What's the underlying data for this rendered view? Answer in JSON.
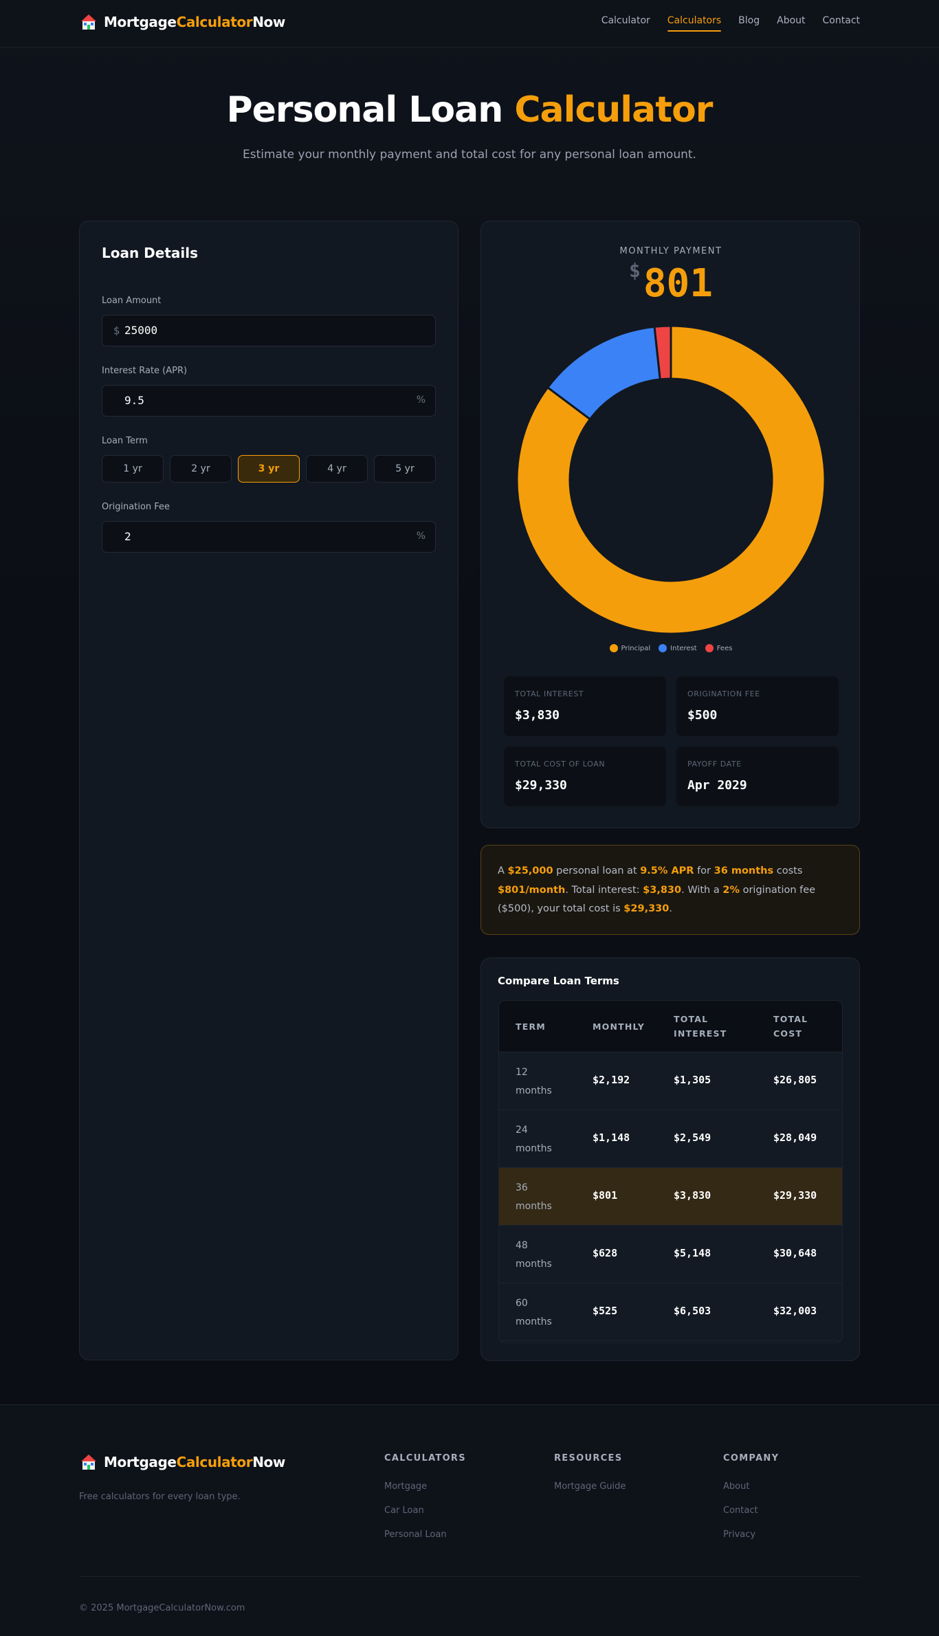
{
  "brand": {
    "part1": "Mortgage",
    "part2": "Calculator",
    "part3": "Now"
  },
  "nav": {
    "links": [
      "Calculator",
      "Calculators",
      "Blog",
      "About",
      "Contact"
    ],
    "active": "Calculators"
  },
  "hero": {
    "title_main": "Personal Loan",
    "title_accent": "Calculator",
    "subtitle": "Estimate your monthly payment and total cost for any personal loan amount."
  },
  "form": {
    "title": "Loan Details",
    "amount_label": "Loan Amount",
    "amount_prefix": "$",
    "amount_value": "25000",
    "rate_label": "Interest Rate (APR)",
    "rate_value": "9.5",
    "rate_suffix": "%",
    "term_label": "Loan Term",
    "terms": [
      "1 yr",
      "2 yr",
      "3 yr",
      "4 yr",
      "5 yr"
    ],
    "term_selected": "3 yr",
    "fee_label": "Origination Fee",
    "fee_value": "2",
    "fee_suffix": "%"
  },
  "result": {
    "label": "MONTHLY PAYMENT",
    "currency": "$",
    "value": "801",
    "legend": [
      "Principal",
      "Interest",
      "Fees"
    ],
    "colors": {
      "principal": "#f59e0b",
      "interest": "#3b82f6",
      "fees": "#ef4444"
    },
    "breakdown": {
      "principal": 25000,
      "interest": 3830,
      "fees": 500
    },
    "stats": [
      {
        "label": "TOTAL INTEREST",
        "value": "$3,830"
      },
      {
        "label": "ORIGINATION FEE",
        "value": "$500"
      },
      {
        "label": "TOTAL COST OF LOAN",
        "value": "$29,330"
      },
      {
        "label": "PAYOFF DATE",
        "value": "Apr 2029"
      }
    ]
  },
  "summary": {
    "t1": "A ",
    "b1": "$25,000",
    "t2": " personal loan at ",
    "b2": "9.5% APR",
    "t3": " for ",
    "b3": "36 months",
    "t4": " costs ",
    "b4": "$801/month",
    "t5": ". Total interest: ",
    "b5": "$3,830",
    "t6": ". With a ",
    "b6": "2%",
    "t7": " origination fee ($500), your total cost is ",
    "b7": "$29,330",
    "t8": "."
  },
  "compare": {
    "title": "Compare Loan Terms",
    "headers": {
      "term": "TERM",
      "monthly": "MONTHLY",
      "interest_1": "TOTAL",
      "interest_2": "INTEREST",
      "cost_1": "TOTAL",
      "cost_2": "COST"
    },
    "rows": [
      {
        "term": "12 months",
        "monthly": "$2,192",
        "interest": "$1,305",
        "cost": "$26,805"
      },
      {
        "term": "24 months",
        "monthly": "$1,148",
        "interest": "$2,549",
        "cost": "$28,049"
      },
      {
        "term": "36 months",
        "monthly": "$801",
        "interest": "$3,830",
        "cost": "$29,330"
      },
      {
        "term": "48 months",
        "monthly": "$628",
        "interest": "$5,148",
        "cost": "$30,648"
      },
      {
        "term": "60 months",
        "monthly": "$525",
        "interest": "$6,503",
        "cost": "$32,003"
      }
    ],
    "highlighted": "36 months"
  },
  "footer": {
    "tagline": "Free calculators for every loan type.",
    "columns": [
      {
        "title": "CALCULATORS",
        "links": [
          "Mortgage",
          "Car Loan",
          "Personal Loan"
        ]
      },
      {
        "title": "RESOURCES",
        "links": [
          "Mortgage Guide"
        ]
      },
      {
        "title": "COMPANY",
        "links": [
          "About",
          "Contact",
          "Privacy"
        ]
      }
    ],
    "copyright": "© 2025 MortgageCalculatorNow.com"
  }
}
